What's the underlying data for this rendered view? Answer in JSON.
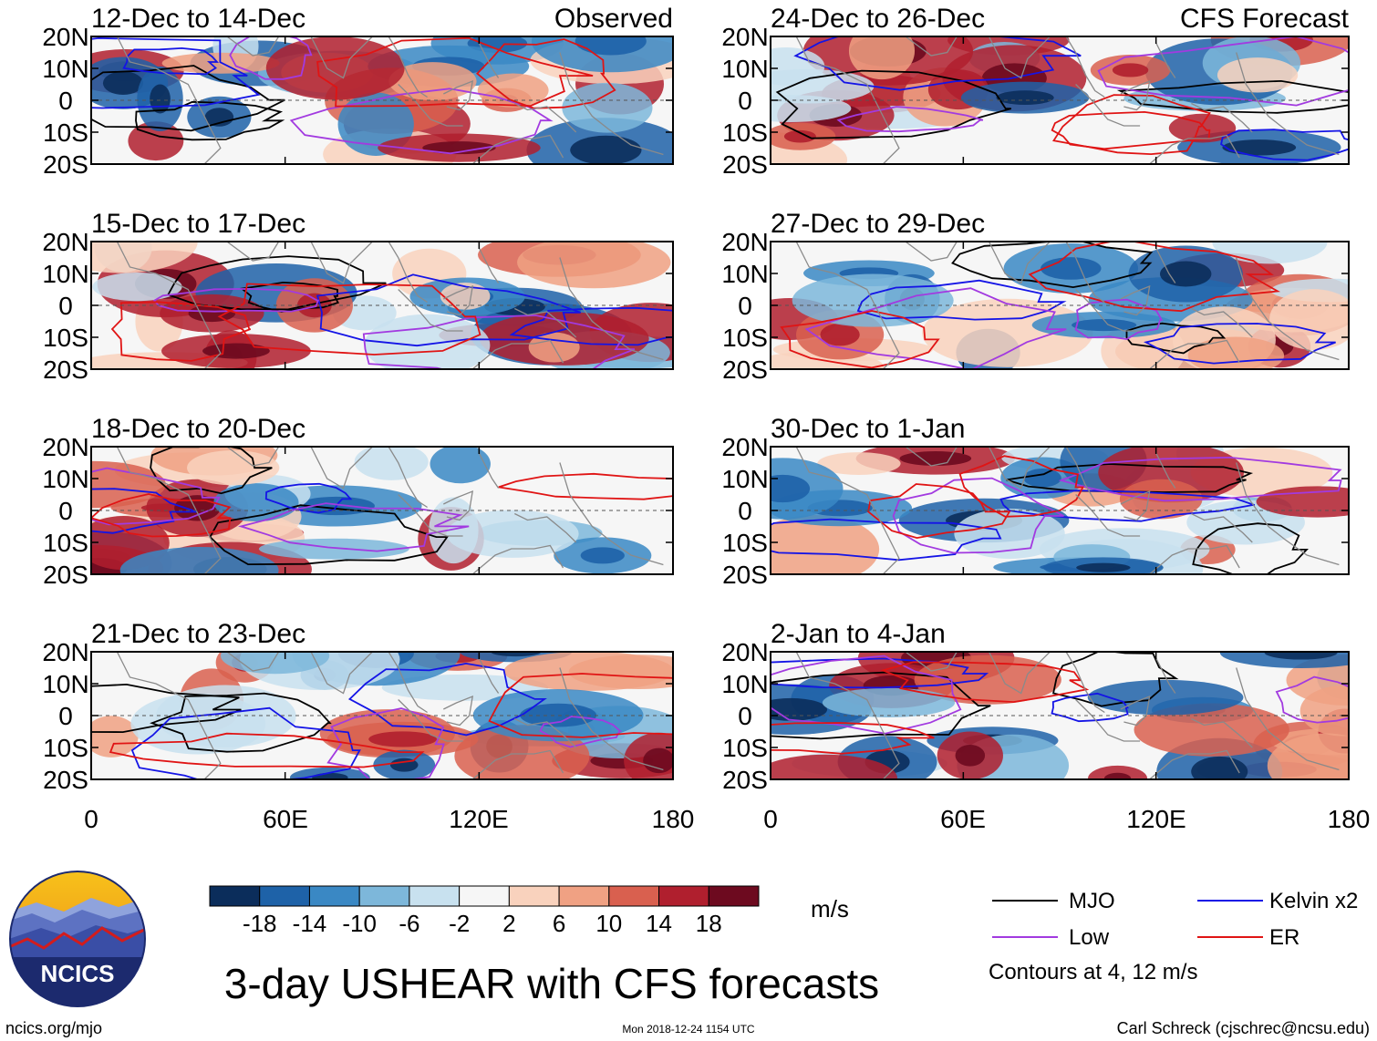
{
  "figure_title": "3-day USHEAR with CFS forecasts",
  "logo_text": "NCICS",
  "footer": {
    "left": "ncics.org/mjo",
    "center": "Mon 2018-12-24 1154 UTC",
    "right": "Carl Schreck (cjschrec@ncsu.edu)"
  },
  "colorbar": {
    "units": "m/s",
    "tick_labels": [
      "-18",
      "-14",
      "-10",
      "-6",
      "-2",
      "2",
      "6",
      "10",
      "14",
      "18"
    ],
    "colors": [
      "#0b2d5b",
      "#1e62a8",
      "#3a88c4",
      "#7db7da",
      "#c8e1ef",
      "#f6f6f6",
      "#f9d2bd",
      "#f0a183",
      "#d9604f",
      "#b01f2e",
      "#6d0a1f"
    ]
  },
  "legend": {
    "items": [
      {
        "label": "MJO",
        "color": "#000000"
      },
      {
        "label": "Kelvin x2",
        "color": "#1414e6"
      },
      {
        "label": "Low",
        "color": "#a23ae0"
      },
      {
        "label": "ER",
        "color": "#e01414"
      }
    ],
    "note": "Contours at 4, 12 m/s"
  },
  "chart_data": {
    "type": "heatmap",
    "variable": "USHEAR",
    "units": "m/s",
    "xlabel": "",
    "ylabel": "",
    "x_ticks": [
      "0",
      "60E",
      "120E",
      "180"
    ],
    "y_ticks": [
      "20N",
      "10N",
      "0",
      "10S",
      "20S"
    ],
    "xlim": [
      0,
      180
    ],
    "ylim": [
      -20,
      20
    ],
    "panels": [
      {
        "title": "12-Dec to 14-Dec",
        "tag": "Observed",
        "column": "left"
      },
      {
        "title": "15-Dec to 17-Dec",
        "tag": "",
        "column": "left"
      },
      {
        "title": "18-Dec to 20-Dec",
        "tag": "",
        "column": "left"
      },
      {
        "title": "21-Dec to 23-Dec",
        "tag": "",
        "column": "left"
      },
      {
        "title": "24-Dec to 26-Dec",
        "tag": "CFS Forecast",
        "column": "right"
      },
      {
        "title": "27-Dec to 29-Dec",
        "tag": "",
        "column": "right"
      },
      {
        "title": "30-Dec to 1-Jan",
        "tag": "",
        "column": "right"
      },
      {
        "title": "2-Jan to 4-Jan",
        "tag": "",
        "column": "right"
      }
    ]
  }
}
